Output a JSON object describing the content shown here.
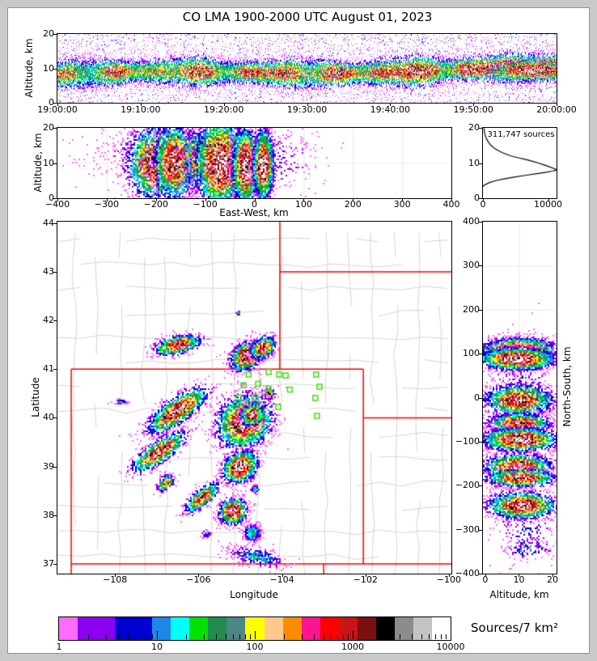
{
  "title": "CO LMA 1900-2000 UTC August 01, 2023",
  "colorbar": {
    "label": "Sources/7 km²",
    "tick_labels": [
      "1",
      "10",
      "100",
      "1000",
      "10000"
    ],
    "min": 1,
    "max": 10000,
    "scale": "log",
    "colors": [
      "#ff6aff",
      "#8a00f0",
      "#0000d2",
      "#1e87e8",
      "#00ffff",
      "#00e100",
      "#1f8b4d",
      "#4f8585",
      "#ffff00",
      "#ffc98a",
      "#ff8c00",
      "#ff1493",
      "#ff0000",
      "#c81616",
      "#7d0f0f",
      "#000000",
      "#8c8c8c",
      "#c4c4c4",
      "#ffffff"
    ],
    "weights": [
      1,
      2,
      2,
      1,
      1,
      1,
      1,
      1,
      1,
      1,
      1,
      1,
      1,
      1,
      1,
      1,
      1,
      1,
      1
    ]
  },
  "chart_data": {
    "panels": {
      "time_height": {
        "type": "heatmap",
        "ylabel": "Altitude, km",
        "ylim": [
          0,
          20
        ],
        "ytick_values": [
          0,
          10,
          20
        ],
        "ytick_labels": [
          "0",
          "10",
          "20"
        ],
        "xtick_labels": [
          "19:00:00",
          "19:10:00",
          "19:20:00",
          "19:30:00",
          "19:40:00",
          "19:50:00",
          "20:00:00"
        ],
        "band": {
          "n": 16000,
          "center0": 8.3,
          "center1": 9.9,
          "sigma": 2.0,
          "peak0": 0.62,
          "peak1": 0.95
        },
        "noise": {
          "n": 5200
        },
        "blobs": [
          {
            "x": 0.955,
            "y": 9.3,
            "rx": 0.045,
            "ry": 1.5,
            "rot": 0,
            "peak": 0.98,
            "n": 2600
          }
        ]
      },
      "east_west": {
        "type": "heatmap",
        "xlabel": "East-West, km",
        "ylabel": "Altitude, km",
        "xlim": [
          -400,
          400
        ],
        "ylim": [
          0,
          20
        ],
        "xtick_values": [
          -400,
          -300,
          -200,
          -100,
          0,
          100,
          200,
          300,
          400
        ],
        "xtick_labels": [
          "−400",
          "−300",
          "−200",
          "−100",
          "0",
          "100",
          "200",
          "300",
          "400"
        ],
        "ytick_values": [
          0,
          10,
          20
        ],
        "ytick_labels": [
          "0",
          "10",
          "20"
        ],
        "grid": true,
        "blobs": [
          {
            "x": -140,
            "y": 13,
            "rx": 95,
            "ry": 4.5,
            "rot": 0,
            "peak": 0.16,
            "n": 900
          },
          {
            "x": 30,
            "y": 11,
            "rx": 55,
            "ry": 5,
            "rot": 0,
            "peak": 0.12,
            "n": 300
          },
          {
            "x": -205,
            "y": 10,
            "rx": 27,
            "ry": 5.2,
            "rot": 0,
            "peak": 0.75,
            "n": 2200
          },
          {
            "x": -162,
            "y": 10.3,
            "rx": 20,
            "ry": 5.4,
            "rot": 0,
            "peak": 0.85,
            "n": 2200
          },
          {
            "x": -120,
            "y": 11,
            "rx": 11,
            "ry": 4.6,
            "rot": 0,
            "peak": 0.55,
            "n": 650
          },
          {
            "x": -70,
            "y": 10,
            "rx": 25,
            "ry": 6.2,
            "rot": 0,
            "peak": 0.93,
            "n": 3600
          },
          {
            "x": -18,
            "y": 9,
            "rx": 13,
            "ry": 5.2,
            "rot": 0,
            "peak": 1.0,
            "n": 2800
          },
          {
            "x": 18,
            "y": 9.5,
            "rx": 10,
            "ry": 4.8,
            "rot": 0,
            "peak": 0.98,
            "n": 2300
          }
        ]
      },
      "histogram": {
        "type": "line",
        "annotation": "311,747 sources",
        "xlim": [
          0,
          11300
        ],
        "ylim": [
          0,
          20
        ],
        "xtick_values": [
          0,
          10000
        ],
        "xtick_labels": [
          "0",
          "10000"
        ],
        "ytick_values": [
          0,
          10,
          20
        ],
        "ytick_labels": [
          "0",
          "10",
          "20"
        ],
        "curve_counts": [
          150,
          220,
          320,
          520,
          820,
          1250,
          1900,
          2900,
          4300,
          5400,
          6600,
          7600,
          8500,
          9300,
          10100,
          10800,
          11200,
          11300,
          10700,
          9700,
          8300,
          6500,
          4800,
          3200,
          2000,
          1100,
          500,
          180,
          30,
          0
        ],
        "curve_altitudes_km": [
          20,
          19,
          18,
          17,
          16,
          15,
          14,
          13,
          12,
          11.5,
          11,
          10.5,
          10,
          9.5,
          9,
          8.5,
          8.2,
          8,
          7.7,
          7.4,
          7,
          6.5,
          6,
          5.5,
          5,
          4.5,
          4,
          3.7,
          3.4,
          3.2
        ]
      },
      "map": {
        "type": "heatmap",
        "xlabel": "Longitude",
        "ylabel": "Latitude",
        "xlim": [
          -109.38,
          -99.94
        ],
        "ylim": [
          36.8,
          44.03
        ],
        "xtick_values": [
          -108,
          -106,
          -104,
          -102,
          -100
        ],
        "xtick_labels": [
          "−108",
          "−106",
          "−104",
          "−102",
          "−100"
        ],
        "ytick_values": [
          37,
          38,
          39,
          40,
          41,
          42,
          43,
          44
        ],
        "ytick_labels": [
          "37",
          "38",
          "39",
          "40",
          "41",
          "42",
          "43",
          "44"
        ],
        "state_border_color": "#f20000",
        "county_color": "#d4d4d4",
        "station_color": "#4ce01e",
        "county_seed": 7,
        "state_lines": [
          [
            [
              -109.05,
              41.0
            ],
            [
              -102.05,
              41.0
            ]
          ],
          [
            [
              -102.05,
              41.0
            ],
            [
              -102.05,
              37.0
            ]
          ],
          [
            [
              -109.05,
              37.0
            ],
            [
              -99.94,
              37.0
            ]
          ],
          [
            [
              -109.05,
              41.0
            ],
            [
              -109.05,
              36.8
            ]
          ],
          [
            [
              -104.05,
              44.03
            ],
            [
              -104.05,
              41.0
            ]
          ],
          [
            [
              -104.05,
              43.0
            ],
            [
              -99.94,
              43.0
            ]
          ],
          [
            [
              -102.05,
              40.0
            ],
            [
              -99.94,
              40.0
            ]
          ],
          [
            [
              -103.0,
              37.0
            ],
            [
              -103.0,
              36.8
            ]
          ]
        ],
        "stations": [
          [
            -104.8,
            40.89
          ],
          [
            -104.32,
            40.94
          ],
          [
            -104.07,
            40.89
          ],
          [
            -103.91,
            40.87
          ],
          [
            -104.92,
            40.67
          ],
          [
            -104.57,
            40.7
          ],
          [
            -104.32,
            40.6
          ],
          [
            -105.03,
            40.42
          ],
          [
            -104.63,
            40.42
          ],
          [
            -103.81,
            40.58
          ],
          [
            -104.09,
            40.22
          ],
          [
            -104.52,
            40.04
          ],
          [
            -103.18,
            40.89
          ],
          [
            -103.1,
            40.64
          ],
          [
            -103.2,
            40.41
          ],
          [
            -103.16,
            40.04
          ]
        ],
        "blobs": [
          {
            "x": -106.49,
            "y": 41.5,
            "rx": 0.28,
            "ry": 0.09,
            "rot": 10,
            "peak": 0.8,
            "n": 800
          },
          {
            "x": -104.84,
            "y": 41.27,
            "rx": 0.2,
            "ry": 0.13,
            "rot": 25,
            "peak": 0.97,
            "n": 1300
          },
          {
            "x": -104.45,
            "y": 41.44,
            "rx": 0.15,
            "ry": 0.1,
            "rot": 25,
            "peak": 0.92,
            "n": 800
          },
          {
            "x": -104.32,
            "y": 40.49,
            "rx": 0.07,
            "ry": 0.05,
            "rot": 0,
            "peak": 0.85,
            "n": 240
          },
          {
            "x": -106.5,
            "y": 40.15,
            "rx": 0.4,
            "ry": 0.13,
            "rot": 30,
            "peak": 0.86,
            "n": 1400
          },
          {
            "x": -104.9,
            "y": 39.92,
            "rx": 0.33,
            "ry": 0.26,
            "rot": 20,
            "peak": 0.9,
            "n": 2400
          },
          {
            "x": -104.72,
            "y": 40.07,
            "rx": 0.14,
            "ry": 0.11,
            "rot": 20,
            "peak": 0.85,
            "n": 700
          },
          {
            "x": -106.95,
            "y": 39.3,
            "rx": 0.36,
            "ry": 0.11,
            "rot": 30,
            "peak": 0.82,
            "n": 1000
          },
          {
            "x": -105.0,
            "y": 38.99,
            "rx": 0.21,
            "ry": 0.15,
            "rot": 25,
            "peak": 1.0,
            "n": 1400
          },
          {
            "x": -106.78,
            "y": 38.66,
            "rx": 0.11,
            "ry": 0.07,
            "rot": 30,
            "peak": 0.6,
            "n": 260
          },
          {
            "x": -105.91,
            "y": 38.36,
            "rx": 0.24,
            "ry": 0.09,
            "rot": 35,
            "peak": 0.72,
            "n": 550
          },
          {
            "x": -105.17,
            "y": 38.08,
            "rx": 0.16,
            "ry": 0.13,
            "rot": 10,
            "peak": 0.93,
            "n": 1100
          },
          {
            "x": -104.65,
            "y": 38.53,
            "rx": 0.05,
            "ry": 0.04,
            "rot": 0,
            "peak": 0.3,
            "n": 110
          },
          {
            "x": -104.71,
            "y": 37.64,
            "rx": 0.11,
            "ry": 0.09,
            "rot": 0,
            "peak": 0.32,
            "n": 420
          },
          {
            "x": -105.81,
            "y": 37.61,
            "rx": 0.05,
            "ry": 0.04,
            "rot": 0,
            "peak": 0.2,
            "n": 60
          },
          {
            "x": -104.6,
            "y": 37.14,
            "rx": 0.38,
            "ry": 0.1,
            "rot": -10,
            "peak": 0.22,
            "n": 300
          },
          {
            "x": -107.85,
            "y": 40.33,
            "rx": 0.09,
            "ry": 0.03,
            "rot": 0,
            "peak": 0.18,
            "n": 45
          },
          {
            "x": -105.05,
            "y": 42.15,
            "rx": 0.03,
            "ry": 0.02,
            "rot": 0,
            "peak": 0.25,
            "n": 12
          }
        ]
      },
      "north_south": {
        "type": "heatmap",
        "xlabel": "Altitude, km",
        "ylabel": "North-South, km",
        "xlim": [
          -0.7,
          21.2
        ],
        "ylim": [
          -400,
          400
        ],
        "xtick_values": [
          0,
          10,
          20
        ],
        "xtick_labels": [
          "0",
          "10",
          "20"
        ],
        "ytick_values": [
          -400,
          -300,
          -200,
          -100,
          0,
          100,
          200,
          300,
          400
        ],
        "ytick_labels": [
          "−400",
          "−300",
          "−200",
          "−100",
          "0",
          "100",
          "200",
          "300",
          "400"
        ],
        "grid": true,
        "blobs": [
          {
            "x": 11,
            "y": -30,
            "rx": 7,
            "ry": 85,
            "rot": 0,
            "peak": 0.13,
            "n": 700
          },
          {
            "x": 12,
            "y": -300,
            "rx": 5,
            "ry": 40,
            "rot": 0,
            "peak": 0.12,
            "n": 200
          },
          {
            "x": 13,
            "y": -345,
            "rx": 4,
            "ry": 12,
            "rot": 0,
            "peak": 0.18,
            "n": 90
          },
          {
            "x": 11,
            "y": 125,
            "rx": 7,
            "ry": 8,
            "rot": 0,
            "peak": 0.15,
            "n": 120
          },
          {
            "x": 10,
            "y": 108,
            "rx": 5.2,
            "ry": 13,
            "rot": 0,
            "peak": 1.0,
            "n": 2400
          },
          {
            "x": 9.5,
            "y": 88,
            "rx": 5.4,
            "ry": 12,
            "rot": 0,
            "peak": 1.0,
            "n": 2400
          },
          {
            "x": 10,
            "y": -5,
            "rx": 5,
            "ry": 17,
            "rot": 0,
            "peak": 0.82,
            "n": 1700
          },
          {
            "x": 10,
            "y": -58,
            "rx": 4.6,
            "ry": 11,
            "rot": 0,
            "peak": 0.78,
            "n": 1100
          },
          {
            "x": 10.5,
            "y": -95,
            "rx": 5.4,
            "ry": 13,
            "rot": 0,
            "peak": 0.93,
            "n": 2100
          },
          {
            "x": 9.8,
            "y": -158,
            "rx": 5,
            "ry": 15,
            "rot": 0,
            "peak": 0.84,
            "n": 1500
          },
          {
            "x": 10.6,
            "y": -183,
            "rx": 5,
            "ry": 10,
            "rot": 0,
            "peak": 0.85,
            "n": 1100
          },
          {
            "x": 11,
            "y": -245,
            "rx": 5,
            "ry": 15,
            "rot": 0,
            "peak": 0.88,
            "n": 1700
          }
        ]
      }
    }
  }
}
